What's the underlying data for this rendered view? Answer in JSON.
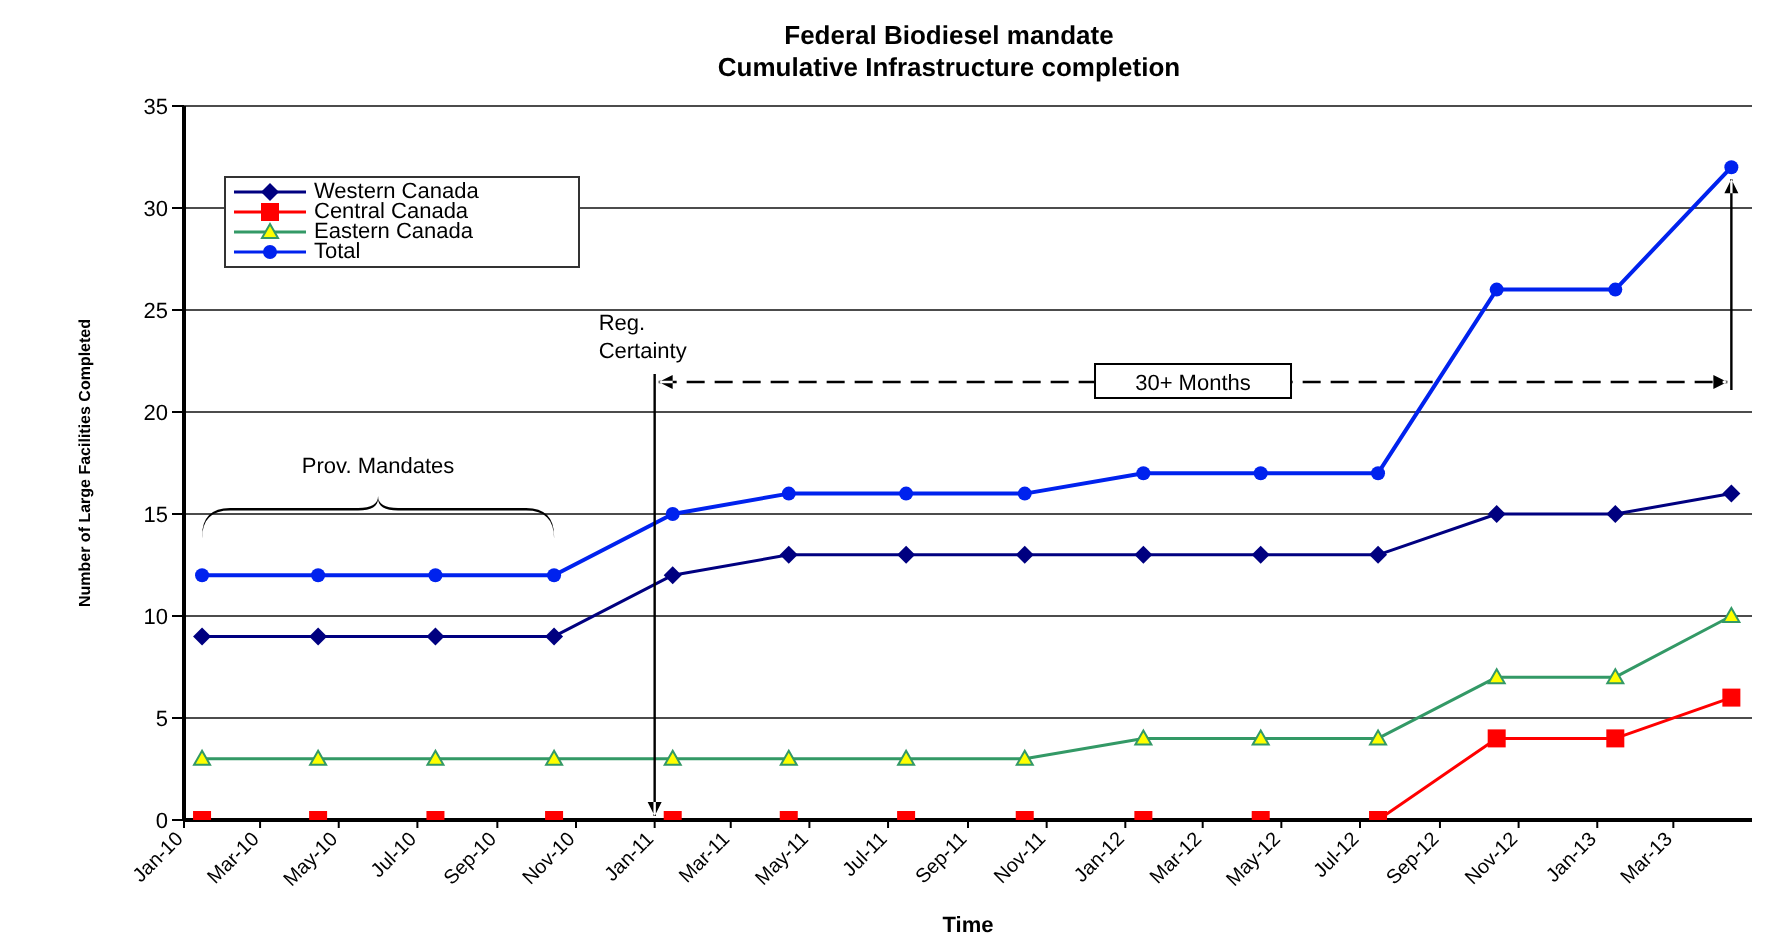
{
  "chart_data": {
    "type": "line",
    "title": "Federal Biodiesel mandate",
    "subtitle": "Cumulative Infrastructure completion",
    "xlabel": "Time",
    "ylabel": "Number of Large Facilities Completed",
    "x": [
      "2010-01-15",
      "2010-04-15",
      "2010-07-15",
      "2010-10-15",
      "2011-01-15",
      "2011-04-15",
      "2011-07-15",
      "2011-10-15",
      "2012-01-15",
      "2012-04-15",
      "2012-07-15",
      "2012-10-15",
      "2013-01-15",
      "2013-04-15"
    ],
    "series": [
      {
        "name": "Western Canada",
        "color": "#000080",
        "marker": "diamond",
        "values": [
          9,
          9,
          9,
          9,
          12,
          13,
          13,
          13,
          13,
          13,
          13,
          15,
          15,
          16
        ]
      },
      {
        "name": "Central Canada",
        "color": "#ff0000",
        "marker": "square",
        "values": [
          0,
          0,
          0,
          0,
          0,
          0,
          0,
          0,
          0,
          0,
          0,
          4,
          4,
          6
        ]
      },
      {
        "name": "Eastern Canada",
        "color": "#339966",
        "marker": "triangle",
        "values": [
          3,
          3,
          3,
          3,
          3,
          3,
          3,
          3,
          4,
          4,
          4,
          7,
          7,
          10
        ]
      },
      {
        "name": "Total",
        "color": "#0022ee",
        "marker": "circle",
        "values": [
          12,
          12,
          12,
          12,
          15,
          16,
          16,
          16,
          17,
          17,
          17,
          26,
          26,
          32
        ]
      }
    ],
    "xlim": [
      "2010-01-01",
      "2013-05-01"
    ],
    "xticks": [
      {
        "value": "2010-01-01",
        "label": "Jan-10"
      },
      {
        "value": "2010-03-01",
        "label": "Mar-10"
      },
      {
        "value": "2010-05-01",
        "label": "May-10"
      },
      {
        "value": "2010-07-01",
        "label": "Jul-10"
      },
      {
        "value": "2010-09-01",
        "label": "Sep-10"
      },
      {
        "value": "2010-11-01",
        "label": "Nov-10"
      },
      {
        "value": "2011-01-01",
        "label": "Jan-11"
      },
      {
        "value": "2011-03-01",
        "label": "Mar-11"
      },
      {
        "value": "2011-05-01",
        "label": "May-11"
      },
      {
        "value": "2011-07-01",
        "label": "Jul-11"
      },
      {
        "value": "2011-09-01",
        "label": "Sep-11"
      },
      {
        "value": "2011-11-01",
        "label": "Nov-11"
      },
      {
        "value": "2012-01-01",
        "label": "Jan-12"
      },
      {
        "value": "2012-03-01",
        "label": "Mar-12"
      },
      {
        "value": "2012-05-01",
        "label": "May-12"
      },
      {
        "value": "2012-07-01",
        "label": "Jul-12"
      },
      {
        "value": "2012-09-01",
        "label": "Sep-12"
      },
      {
        "value": "2012-11-01",
        "label": "Nov-12"
      },
      {
        "value": "2013-01-01",
        "label": "Jan-13"
      },
      {
        "value": "2013-03-01",
        "label": "Mar-13"
      }
    ],
    "ylim": [
      0,
      35
    ],
    "yticks": [
      0,
      5,
      10,
      15,
      20,
      25,
      30,
      35
    ],
    "grid": "y",
    "legend": "top left",
    "ref_lines": [
      {
        "axis": "x",
        "value": "2011-01-01",
        "label": "Reg. Certainty"
      }
    ],
    "annotations": [
      "Prov. Mandates",
      "30+ Months"
    ]
  }
}
